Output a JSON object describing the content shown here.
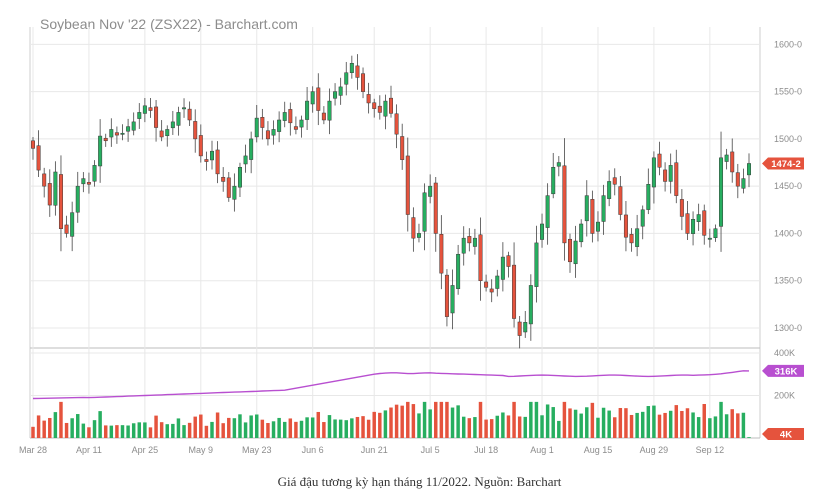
{
  "caption": "Giá đậu tương kỳ hạn tháng 11/2022. Nguồn: Barchart",
  "chart_data": {
    "type": "candlestick",
    "title": "Soybean Nov '22 (ZSX22) - Barchart.com",
    "x_ticks": [
      "Mar 28",
      "Apr 11",
      "Apr 25",
      "May 9",
      "May 23",
      "Jun 6",
      "Jun 21",
      "Jul 5",
      "Jul 18",
      "Aug 1",
      "Aug 15",
      "Aug 29",
      "Sep 12"
    ],
    "x_tick_index": [
      0,
      10,
      20,
      30,
      40,
      50,
      61,
      71,
      81,
      91,
      101,
      111,
      121
    ],
    "price_axis": {
      "ticks": [
        "1600-0",
        "1550-0",
        "1500-0",
        "1450-0",
        "1400-0",
        "1350-0",
        "1300-0"
      ],
      "tick_values": [
        1600,
        1550,
        1500,
        1450,
        1400,
        1350,
        1300
      ],
      "ylim": [
        1282,
        1612
      ]
    },
    "volume_axis": {
      "ticks": [
        "400K",
        "200K"
      ],
      "tick_values": [
        400,
        200
      ],
      "ylim": [
        0,
        400
      ]
    },
    "last_price_label": "1474-2",
    "open_interest_label": "316K",
    "volume_label": "4K",
    "colors": {
      "up": "#27ae60",
      "down": "#e5533d",
      "open_interest": "#b84fd0",
      "grid": "#e8e8e8",
      "axis_text": "#8c8c8c"
    },
    "candles_close": [
      1490,
      1467,
      1450,
      1430,
      1465,
      1405,
      1400,
      1422,
      1450,
      1458,
      1452,
      1472,
      1503,
      1498,
      1510,
      1504,
      1506,
      1513,
      1518,
      1528,
      1535,
      1530,
      1512,
      1502,
      1510,
      1518,
      1528,
      1533,
      1520,
      1500,
      1482,
      1476,
      1487,
      1463,
      1455,
      1438,
      1450,
      1470,
      1482,
      1500,
      1522,
      1512,
      1500,
      1510,
      1520,
      1528,
      1517,
      1510,
      1520,
      1540,
      1550,
      1530,
      1520,
      1540,
      1550,
      1555,
      1570,
      1580,
      1565,
      1550,
      1538,
      1532,
      1528,
      1540,
      1527,
      1505,
      1478,
      1420,
      1395,
      1400,
      1443,
      1450,
      1400,
      1358,
      1312,
      1345,
      1378,
      1395,
      1390,
      1395,
      1350,
      1343,
      1338,
      1355,
      1375,
      1365,
      1310,
      1292,
      1306,
      1345,
      1390,
      1410,
      1440,
      1470,
      1475,
      1390,
      1370,
      1392,
      1410,
      1440,
      1400,
      1412,
      1440,
      1455,
      1452,
      1420,
      1396,
      1390,
      1405,
      1425,
      1452,
      1480,
      1470,
      1455,
      1472,
      1440,
      1418,
      1400,
      1415,
      1420,
      1398,
      1395,
      1405,
      1480,
      1483,
      1465,
      1450,
      1458,
      1474
    ]
  }
}
